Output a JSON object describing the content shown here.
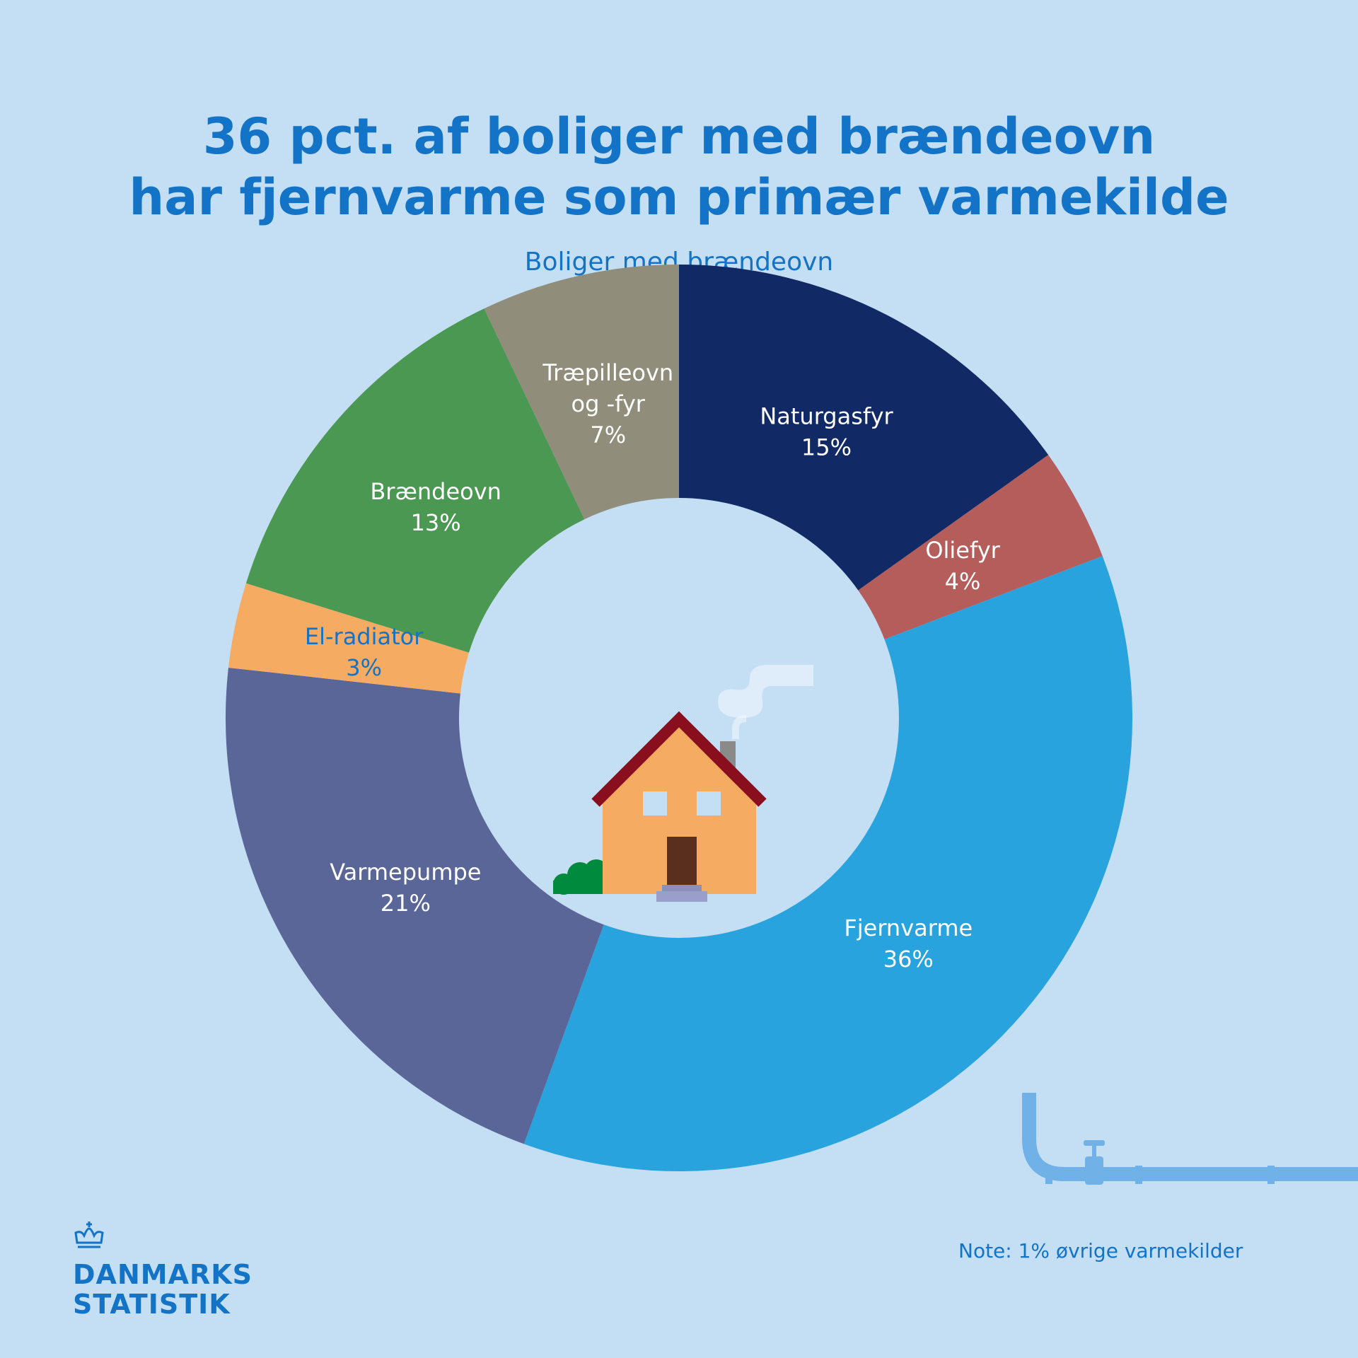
{
  "title": {
    "line1": "36 pct. af boliger med brændeovn",
    "line2": "har fjernvarme som primær varmekilde"
  },
  "subtitle": "Boliger med brændeovn",
  "note": "Note: 1% øvrige varmekilder",
  "logo": {
    "line1": "DANMARKS",
    "line2": "STATISTIK"
  },
  "colors": {
    "background": "#c4def4",
    "accent": "#1273c7"
  },
  "center_icon": "house-with-chimney-smoke-icon",
  "decoration_icon": "district-heating-pipe-icon",
  "chart_data": {
    "type": "pie",
    "variant": "donut",
    "start": "top",
    "direction": "clockwise",
    "unit": "%",
    "slices": [
      {
        "label": "Naturgasfyr",
        "value": 15,
        "value_label": "15%",
        "color": "#112a66",
        "text_color": "#ffffff"
      },
      {
        "label": "Oliefyr",
        "value": 4,
        "value_label": "4%",
        "color": "#b55d5a",
        "text_color": "#ffffff"
      },
      {
        "label": "Fjernvarme",
        "value": 36,
        "value_label": "36%",
        "color": "#29a3de",
        "text_color": "#ffffff"
      },
      {
        "label": "Varmepumpe",
        "value": 21,
        "value_label": "21%",
        "color": "#5a6698",
        "text_color": "#ffffff"
      },
      {
        "label": "El-radiator",
        "value": 3,
        "value_label": "3%",
        "color": "#f5ab62",
        "text_color": "#1273c7"
      },
      {
        "label": "Brændeovn",
        "value": 13,
        "value_label": "13%",
        "color": "#4a9852",
        "text_color": "#ffffff"
      },
      {
        "label": "Træpilleovn og -fyr",
        "label_lines": [
          "Træpilleovn",
          "og -fyr"
        ],
        "value": 7,
        "value_label": "7%",
        "color": "#918d7b",
        "text_color": "#ffffff"
      }
    ]
  }
}
